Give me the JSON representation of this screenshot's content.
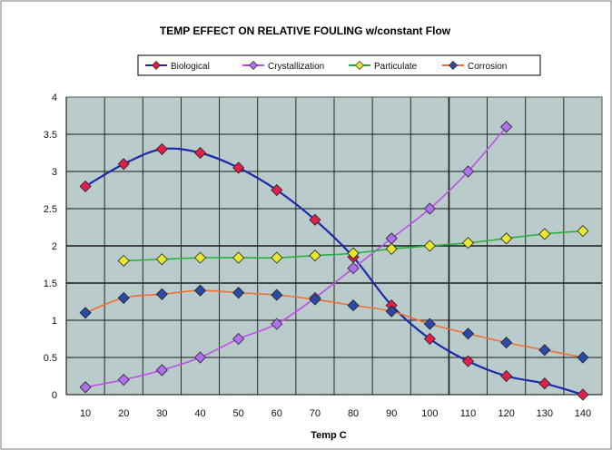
{
  "chart_data": {
    "type": "line",
    "title": "TEMP EFFECT ON RELATIVE FOULING w/constant Flow",
    "xlabel": "Temp C",
    "ylabel": "",
    "x": [
      10,
      20,
      30,
      40,
      50,
      60,
      70,
      80,
      90,
      100,
      110,
      120,
      130,
      140
    ],
    "xlim": [
      10,
      140
    ],
    "ylim": [
      0,
      4
    ],
    "yticks": [
      "0",
      "0.5",
      "1",
      "1.5",
      "2",
      "2.5",
      "3",
      "3.5",
      "4"
    ],
    "xticks": [
      "10",
      "20",
      "30",
      "40",
      "50",
      "60",
      "70",
      "80",
      "90",
      "100",
      "110",
      "120",
      "130",
      "140"
    ],
    "grid": true,
    "legend_position": "top",
    "plot_background": "#b9cbcb",
    "series": [
      {
        "name": "Biological",
        "line_color": "#1a2aa8",
        "marker_color": "#e0204a",
        "values": [
          2.8,
          3.1,
          3.3,
          3.25,
          3.05,
          2.75,
          2.35,
          1.85,
          1.2,
          0.75,
          0.45,
          0.25,
          0.15,
          0.0
        ]
      },
      {
        "name": "Crystallization",
        "line_color": "#c050e8",
        "marker_color": "#b070f0",
        "values": [
          0.1,
          0.2,
          0.33,
          0.5,
          0.75,
          0.95,
          1.3,
          1.7,
          2.1,
          2.5,
          3.0,
          3.6,
          null,
          null
        ]
      },
      {
        "name": "Particulate",
        "line_color": "#2ab040",
        "marker_color": "#e8e830",
        "values": [
          null,
          1.8,
          1.82,
          1.84,
          1.84,
          1.84,
          1.87,
          1.9,
          1.96,
          2.0,
          2.04,
          2.1,
          2.16,
          2.2
        ]
      },
      {
        "name": "Corrosion",
        "line_color": "#f07030",
        "marker_color": "#2a4aa8",
        "values": [
          1.1,
          1.3,
          1.35,
          1.4,
          1.37,
          1.34,
          1.28,
          1.2,
          1.12,
          0.95,
          0.82,
          0.7,
          0.6,
          0.5
        ]
      }
    ]
  }
}
